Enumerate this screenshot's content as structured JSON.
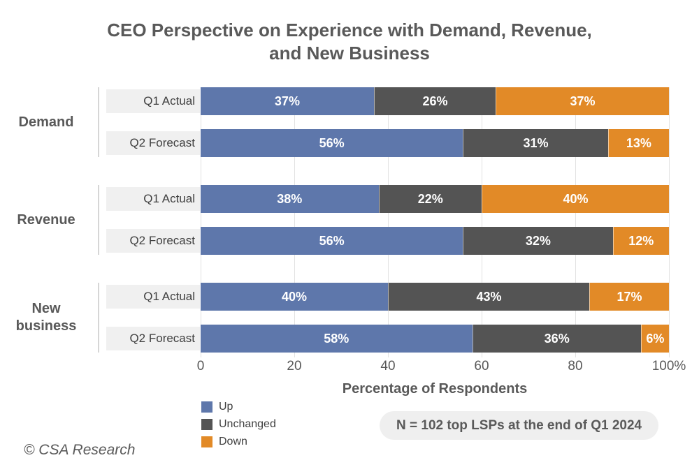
{
  "header": {
    "title_lines": [
      "CEO Perspective on Experience with Demand, Revenue,",
      "and New Business"
    ]
  },
  "chart_data": {
    "type": "bar",
    "orientation": "horizontal",
    "stacked": true,
    "title": "CEO Perspective on Experience with Demand, Revenue, and New Business",
    "xlabel": "Percentage of Respondents",
    "xlim": [
      0,
      100
    ],
    "value_suffix": "%",
    "grid": true,
    "legend_position": "bottom-left",
    "legend": [
      {
        "label": "Up",
        "color": "#5E77AB"
      },
      {
        "label": "Unchanged",
        "color": "#545454"
      },
      {
        "label": "Down",
        "color": "#E28A27"
      }
    ],
    "x_ticks": [
      {
        "label": "0",
        "value": 0
      },
      {
        "label": "20",
        "value": 20
      },
      {
        "label": "40",
        "value": 40
      },
      {
        "label": "60",
        "value": 60
      },
      {
        "label": "80",
        "value": 80
      },
      {
        "label": "100%",
        "value": 100
      }
    ],
    "groups": [
      {
        "label": "Demand",
        "rows": [
          {
            "label": "Q1 Actual",
            "values": [
              37,
              26,
              37
            ]
          },
          {
            "label": "Q2 Forecast",
            "values": [
              56,
              31,
              13
            ]
          }
        ]
      },
      {
        "label": "Revenue",
        "rows": [
          {
            "label": "Q1 Actual",
            "values": [
              38,
              22,
              40
            ]
          },
          {
            "label": "Q2 Forecast",
            "values": [
              56,
              32,
              12
            ]
          }
        ]
      },
      {
        "label": "New business",
        "rows": [
          {
            "label": "Q1 Actual",
            "values": [
              40,
              43,
              17
            ]
          },
          {
            "label": "Q2 Forecast",
            "values": [
              58,
              36,
              6
            ]
          }
        ]
      }
    ]
  },
  "note": {
    "text": "N = 102 top LSPs at the end of Q1 2024"
  },
  "footer": {
    "text": "© CSA Research"
  },
  "layout_colors": {
    "title_text": "#595959",
    "row_label_bg": "#F0F0F0",
    "gridline": "#E2E2E2",
    "note_bg": "#EFEFEF"
  }
}
